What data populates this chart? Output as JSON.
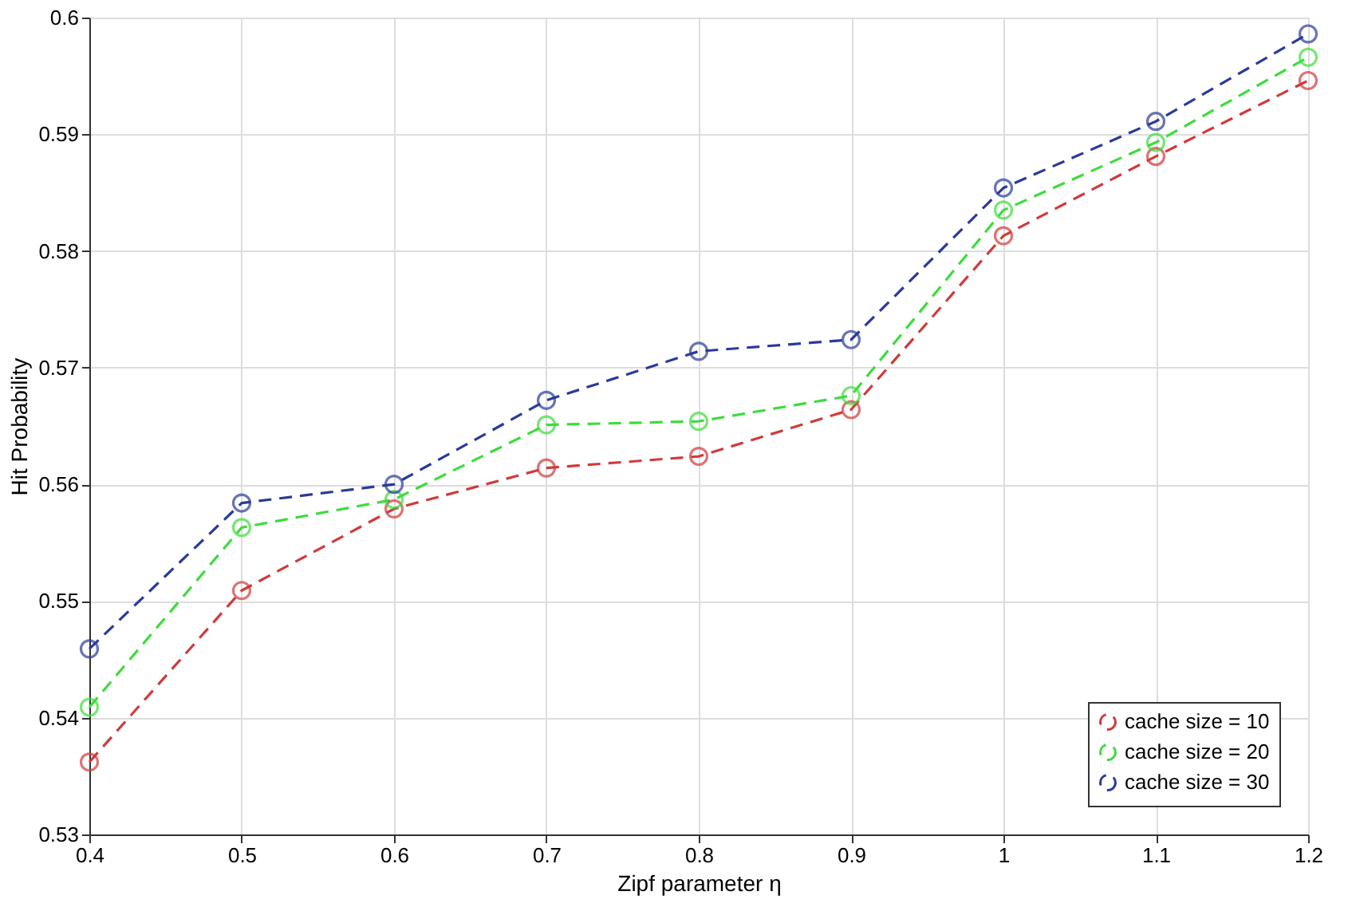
{
  "chart_data": {
    "type": "line",
    "xlabel": "Zipf parameter η",
    "ylabel": "Hit Probability",
    "x": [
      0.4,
      0.5,
      0.6,
      0.7,
      0.8,
      0.9,
      1.0,
      1.1,
      1.2
    ],
    "series": [
      {
        "name": "cache size = 10",
        "color": "#d03a3a",
        "values": [
          0.5362,
          0.5509,
          0.5579,
          0.5614,
          0.5624,
          0.5664,
          0.5813,
          0.5881,
          0.5946
        ]
      },
      {
        "name": "cache size = 20",
        "color": "#3ddc3d",
        "values": [
          0.5409,
          0.5563,
          0.5587,
          0.5651,
          0.5654,
          0.5676,
          0.5835,
          0.5893,
          0.5966
        ]
      },
      {
        "name": "cache size = 30",
        "color": "#2a3a9a",
        "values": [
          0.5459,
          0.5584,
          0.56,
          0.5672,
          0.5714,
          0.5724,
          0.5854,
          0.5911,
          0.5986
        ]
      }
    ],
    "xlim": [
      0.4,
      1.2
    ],
    "xticks": [
      0.4,
      0.5,
      0.6,
      0.7,
      0.8,
      0.9,
      1,
      1.1,
      1.2
    ],
    "ylim": [
      0.53,
      0.6
    ],
    "yticks": [
      0.53,
      0.54,
      0.55,
      0.56,
      0.57,
      0.58,
      0.59,
      0.6
    ],
    "grid": true,
    "legend": "bottom right",
    "marker": "circle",
    "line_style": "dashed"
  }
}
